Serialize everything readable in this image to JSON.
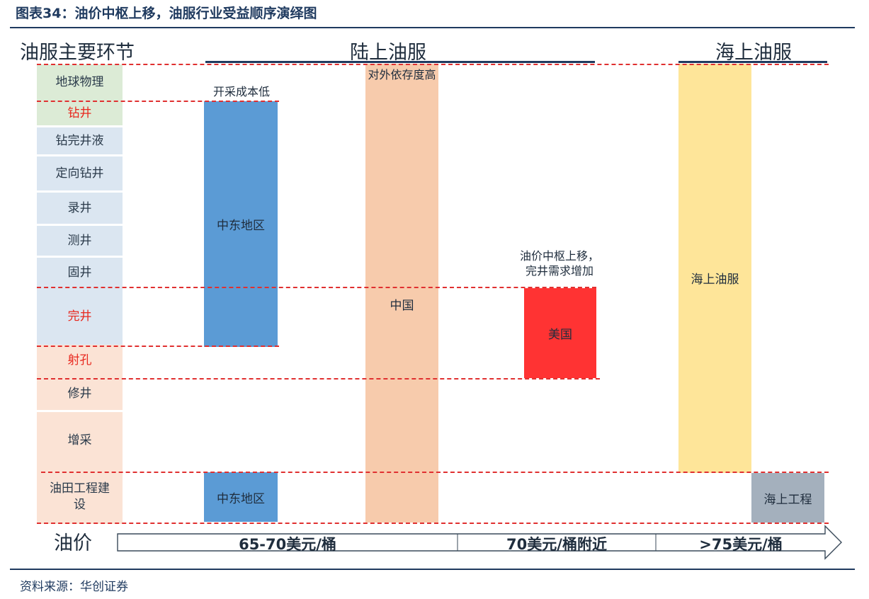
{
  "title": "图表34：油价中枢上移，油服行业受益顺序演绎图",
  "source": "资料来源：华创证券",
  "sections": {
    "main_links": "油服主要环节",
    "onshore": "陆上油服",
    "offshore": "海上油服"
  },
  "stages": [
    {
      "label": "地球物理",
      "color": "#dcebd6",
      "highlight": false
    },
    {
      "label": "钻井",
      "color": "#dcebd6",
      "highlight": true
    },
    {
      "label": "钻完井液",
      "color": "#dbe6f1",
      "highlight": false
    },
    {
      "label": "定向钻井",
      "color": "#dbe6f1",
      "highlight": false
    },
    {
      "label": "录井",
      "color": "#dbe6f1",
      "highlight": false
    },
    {
      "label": "测井",
      "color": "#dbe6f1",
      "highlight": false
    },
    {
      "label": "固井",
      "color": "#dbe6f1",
      "highlight": false
    },
    {
      "label": "完井",
      "color": "#dbe6f1",
      "highlight": true
    },
    {
      "label": "射孔",
      "color": "#fbe3d5",
      "highlight": true
    },
    {
      "label": "修井",
      "color": "#fbe3d5",
      "highlight": false
    },
    {
      "label": "增采",
      "color": "#fbe3d5",
      "highlight": false
    },
    {
      "label": "油田工程建设",
      "color": "#fbe3d5",
      "highlight": false
    }
  ],
  "bars": {
    "middle_east": {
      "label": "中东地区",
      "note": "开采成本低",
      "color": "#5b9bd5"
    },
    "middle_east_bottom": {
      "label": "中东地区",
      "color": "#5b9bd5"
    },
    "china": {
      "label": "中国",
      "note": "对外依存度高",
      "color": "#f7cbac"
    },
    "usa": {
      "label": "美国",
      "note_line1": "油价中枢上移，",
      "note_line2": "完井需求增加",
      "color": "#ff3333"
    },
    "offshore_service": {
      "label": "海上油服",
      "color": "#fee599"
    },
    "offshore_engineering": {
      "label": "海上工程",
      "color": "#a4b0bd"
    }
  },
  "price_axis": {
    "label": "油价",
    "segments": [
      "65-70美元/桶",
      "70美元/桶附近",
      ">75美元/桶"
    ]
  }
}
